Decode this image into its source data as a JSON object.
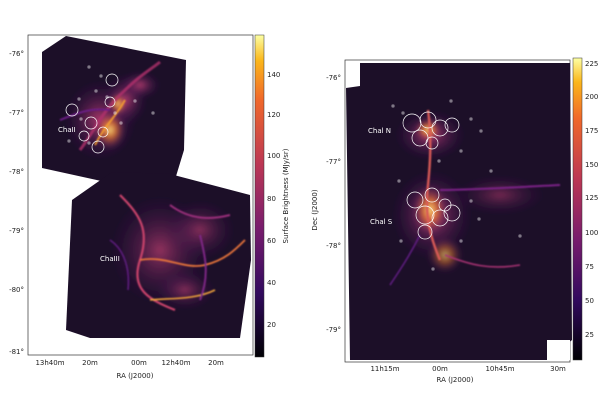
{
  "left_panel": {
    "region_labels": [
      "ChaII",
      "ChaIII"
    ],
    "dec_ticks": [
      "-76°",
      "-77°",
      "-78°",
      "-79°",
      "-80°",
      "-81°"
    ],
    "ra_ticks": [
      "13h40m",
      "20m",
      "00m",
      "12h40m",
      "20m"
    ],
    "xlabel": "RA (J2000)",
    "colorbar": {
      "label": "Surface Brightness (MJy/sr)",
      "ticks": [
        "140",
        "120",
        "100",
        "80",
        "60",
        "40",
        "20"
      ],
      "cmap": "inferno"
    }
  },
  "right_panel": {
    "region_labels": [
      "Chal N",
      "Chal S"
    ],
    "dec_ticks": [
      "-76°",
      "-77°",
      "-78°",
      "-79°"
    ],
    "ra_ticks": [
      "11h15m",
      "00m",
      "10h45m",
      "30m"
    ],
    "xlabel": "RA (J2000)",
    "ylabel": "Dec (J2000)",
    "colorbar": {
      "ticks": [
        "225",
        "200",
        "175",
        "150",
        "125",
        "100",
        "75",
        "50",
        "25"
      ],
      "cmap": "inferno"
    }
  },
  "colors": {
    "background": "#1a1024",
    "filament_dim": "#5a1d7a",
    "filament_mid": "#c13a6a",
    "filament_bright": "#f7b23c"
  }
}
